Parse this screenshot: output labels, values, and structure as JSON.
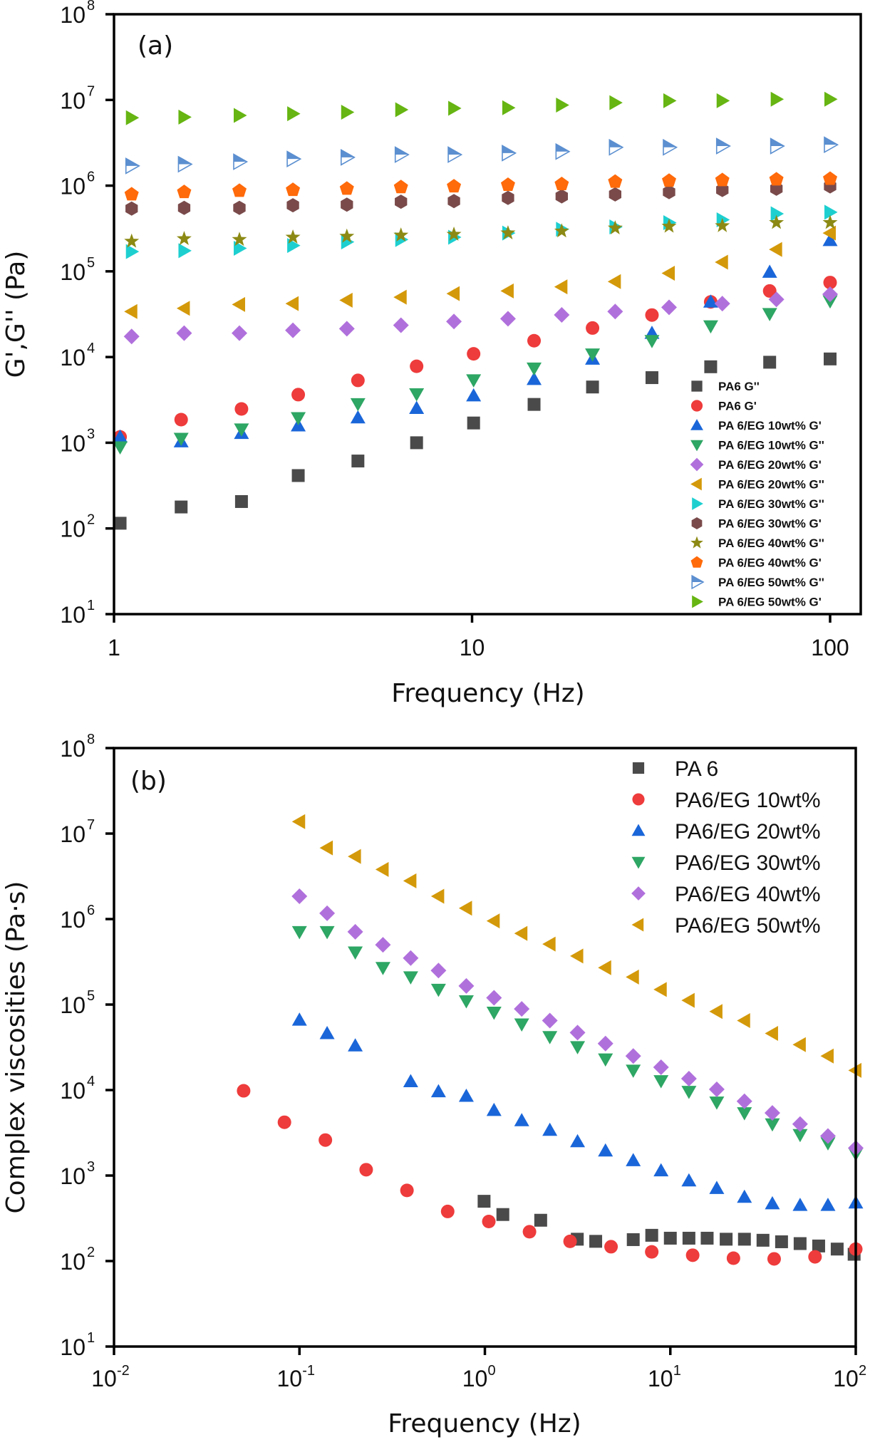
{
  "chart_data": [
    {
      "type": "scatter",
      "panel_label": "(a)",
      "title": "",
      "xlabel": "Frequency (Hz)",
      "ylabel": "G',G'' (Pa)",
      "xscale": "log",
      "yscale": "log",
      "xlim": [
        1,
        100
      ],
      "ylim": [
        10,
        100000000
      ],
      "xticks": [
        {
          "value": 1,
          "label": "1"
        },
        {
          "value": 10,
          "label": "10"
        },
        {
          "value": 100,
          "label": "100"
        }
      ],
      "yticks": [
        {
          "value": 10,
          "base": "10",
          "exp": "1"
        },
        {
          "value": 100,
          "base": "10",
          "exp": "2"
        },
        {
          "value": 1000,
          "base": "10",
          "exp": "3"
        },
        {
          "value": 10000,
          "base": "10",
          "exp": "4"
        },
        {
          "value": 100000,
          "base": "10",
          "exp": "5"
        },
        {
          "value": 1000000,
          "base": "10",
          "exp": "6"
        },
        {
          "value": 10000000,
          "base": "10",
          "exp": "7"
        },
        {
          "value": 100000000,
          "base": "10",
          "exp": "8"
        }
      ],
      "grid": false,
      "legend_position": "bottom-right",
      "series": [
        {
          "name": "PA6 G''",
          "marker": "square",
          "color": "#4a4a4a",
          "x": [
            1.04,
            1.54,
            2.27,
            3.27,
            4.8,
            7.0,
            10.1,
            14.9,
            21.7,
            31.8,
            46.4,
            67.8,
            100
          ],
          "y": [
            115,
            178,
            206,
            414,
            612,
            1000,
            1700,
            2800,
            4470,
            5750,
            7700,
            8700,
            9500
          ]
        },
        {
          "name": "PA6 G'",
          "marker": "circle",
          "color": "#ee3b3b",
          "x": [
            1.04,
            1.54,
            2.27,
            3.27,
            4.8,
            7.0,
            10.1,
            14.9,
            21.7,
            31.8,
            46.4,
            67.8,
            100
          ],
          "y": [
            1170,
            1860,
            2480,
            3640,
            5340,
            7800,
            10900,
            15500,
            21800,
            30900,
            44000,
            59000,
            74000
          ]
        },
        {
          "name": "PA 6/EG 10wt% G'",
          "marker": "triangle-up",
          "color": "#1a66d9",
          "x": [
            1.04,
            1.54,
            2.27,
            3.27,
            4.8,
            7.0,
            10.1,
            14.9,
            21.7,
            31.8,
            46.4,
            67.8,
            100
          ],
          "y": [
            1170,
            1030,
            1290,
            1580,
            1960,
            2530,
            3540,
            5500,
            9500,
            19000,
            44000,
            98000,
            230000
          ]
        },
        {
          "name": "PA 6/EG 10wt% G''",
          "marker": "triangle-down",
          "color": "#2ea664",
          "x": [
            1.04,
            1.54,
            2.27,
            3.27,
            4.8,
            7.0,
            10.1,
            14.9,
            21.7,
            31.8,
            46.4,
            67.8,
            100
          ],
          "y": [
            890,
            1120,
            1440,
            1950,
            2840,
            3710,
            5400,
            7400,
            10800,
            15500,
            23000,
            32000,
            45000
          ]
        },
        {
          "name": "PA 6/EG 20wt% G'",
          "marker": "diamond",
          "color": "#b070dc",
          "x": [
            1.12,
            1.57,
            2.24,
            3.16,
            4.47,
            6.33,
            8.9,
            12.6,
            17.8,
            25.1,
            35.5,
            50,
            70.8,
            100
          ],
          "y": [
            17400,
            19000,
            19000,
            20500,
            21400,
            23500,
            26000,
            28000,
            31000,
            34000,
            38000,
            42000,
            47000,
            54000
          ]
        },
        {
          "name": "PA 6/EG 20wt% G''",
          "marker": "triangle-left",
          "color": "#d4990a",
          "x": [
            1.12,
            1.57,
            2.24,
            3.16,
            4.47,
            6.33,
            8.9,
            12.6,
            17.8,
            25.1,
            35.5,
            50,
            70.8,
            100
          ],
          "y": [
            34000,
            37000,
            41000,
            42000,
            46000,
            50000,
            55000,
            59000,
            66000,
            76000,
            95000,
            128000,
            180000,
            280000
          ]
        },
        {
          "name": "PA 6/EG 30wt% G''",
          "marker": "triangle-right",
          "color": "#1ecfd0",
          "x": [
            1.12,
            1.57,
            2.24,
            3.16,
            4.47,
            6.33,
            8.9,
            12.6,
            17.8,
            25.1,
            35.5,
            50,
            70.8,
            100
          ],
          "y": [
            170000,
            174000,
            186000,
            200000,
            220000,
            235000,
            250000,
            280000,
            310000,
            330000,
            370000,
            400000,
            470000,
            490000
          ]
        },
        {
          "name": "PA 6/EG 30wt% G'",
          "marker": "hexagon",
          "color": "#7a4a4a",
          "x": [
            1.12,
            1.57,
            2.24,
            3.16,
            4.47,
            6.33,
            8.9,
            12.6,
            17.8,
            25.1,
            35.5,
            50,
            70.8,
            100
          ],
          "y": [
            540000,
            550000,
            550000,
            590000,
            600000,
            650000,
            660000,
            720000,
            750000,
            790000,
            840000,
            890000,
            920000,
            980000
          ]
        },
        {
          "name": "PA 6/EG 40wt% G''",
          "marker": "star",
          "color": "#8c8a14",
          "x": [
            1.12,
            1.57,
            2.24,
            3.16,
            4.47,
            6.33,
            8.9,
            12.6,
            17.8,
            25.1,
            35.5,
            50,
            70.8,
            100
          ],
          "y": [
            224000,
            240000,
            235000,
            250000,
            256000,
            264000,
            270000,
            280000,
            295000,
            320000,
            335000,
            340000,
            370000,
            370000
          ]
        },
        {
          "name": "PA 6/EG 40wt% G'",
          "marker": "pentagon",
          "color": "#ff6a0a",
          "x": [
            1.12,
            1.57,
            2.24,
            3.16,
            4.47,
            6.33,
            8.9,
            12.6,
            17.8,
            25.1,
            35.5,
            50,
            70.8,
            100
          ],
          "y": [
            790000,
            840000,
            870000,
            890000,
            920000,
            960000,
            980000,
            1020000,
            1040000,
            1110000,
            1140000,
            1160000,
            1180000,
            1200000
          ]
        },
        {
          "name": "PA 6/EG 50wt% G''",
          "marker": "half-triangle-right",
          "color": "#5b8fd0",
          "x": [
            1.12,
            1.57,
            2.24,
            3.16,
            4.47,
            6.33,
            8.9,
            12.6,
            17.8,
            25.1,
            35.5,
            50,
            70.8,
            100
          ],
          "y": [
            1700000,
            1780000,
            1900000,
            2050000,
            2140000,
            2300000,
            2300000,
            2400000,
            2500000,
            2800000,
            2800000,
            2900000,
            2900000,
            3000000
          ]
        },
        {
          "name": "PA 6/EG 50wt% G'",
          "marker": "triangle-right",
          "color": "#66b512",
          "x": [
            1.12,
            1.57,
            2.24,
            3.16,
            4.47,
            6.33,
            8.9,
            12.6,
            17.8,
            25.1,
            35.5,
            50,
            70.8,
            100
          ],
          "y": [
            6200000,
            6300000,
            6600000,
            6900000,
            7200000,
            7700000,
            8000000,
            8100000,
            8700000,
            9300000,
            9800000,
            9800000,
            10200000,
            10200000
          ]
        }
      ]
    },
    {
      "type": "scatter",
      "panel_label": "(b)",
      "title": "",
      "xlabel": "Frequency (Hz)",
      "ylabel": "Complex viscosities  (Pa·s)",
      "xscale": "log",
      "yscale": "log",
      "xlim": [
        0.01,
        100
      ],
      "ylim": [
        10,
        100000000
      ],
      "xticks": [
        {
          "value": 0.01,
          "base": "10",
          "exp": "-2"
        },
        {
          "value": 0.1,
          "base": "10",
          "exp": "-1"
        },
        {
          "value": 1,
          "base": "10",
          "exp": "0"
        },
        {
          "value": 10,
          "base": "10",
          "exp": "1"
        },
        {
          "value": 100,
          "base": "10",
          "exp": "2"
        }
      ],
      "yticks": [
        {
          "value": 10,
          "base": "10",
          "exp": "1"
        },
        {
          "value": 100,
          "base": "10",
          "exp": "2"
        },
        {
          "value": 1000,
          "base": "10",
          "exp": "3"
        },
        {
          "value": 10000,
          "base": "10",
          "exp": "4"
        },
        {
          "value": 100000,
          "base": "10",
          "exp": "5"
        },
        {
          "value": 1000000,
          "base": "10",
          "exp": "6"
        },
        {
          "value": 10000000,
          "base": "10",
          "exp": "7"
        },
        {
          "value": 100000000,
          "base": "10",
          "exp": "8"
        }
      ],
      "grid": false,
      "legend_position": "top-right",
      "series": [
        {
          "name": "PA 6",
          "marker": "square",
          "color": "#4a4a4a",
          "x": [
            0.99,
            1.25,
            2.0,
            3.15,
            3.96,
            6.31,
            7.94,
            10,
            12.6,
            15.8,
            20,
            25.1,
            31.6,
            39.8,
            50.1,
            63.1,
            79.4,
            98
          ],
          "y": [
            500,
            350,
            300,
            180,
            170,
            178,
            200,
            185,
            185,
            185,
            180,
            180,
            175,
            168,
            160,
            150,
            138,
            120
          ]
        },
        {
          "name": "PA6/EG 10wt%",
          "marker": "circle",
          "color": "#ee3b3b",
          "x": [
            0.05,
            0.083,
            0.138,
            0.229,
            0.38,
            0.63,
            1.05,
            1.74,
            2.88,
            4.79,
            7.94,
            13.2,
            21.9,
            36.3,
            60.3,
            100
          ],
          "y": [
            9800,
            4200,
            2600,
            1170,
            670,
            380,
            290,
            220,
            170,
            147,
            128,
            117,
            108,
            106,
            112,
            138
          ]
        },
        {
          "name": "PA6/EG 20wt%",
          "marker": "triangle-up",
          "color": "#1a66d9",
          "x": [
            0.1,
            0.141,
            0.2,
            0.398,
            0.562,
            0.794,
            1.12,
            1.58,
            2.24,
            3.16,
            4.47,
            6.31,
            8.91,
            12.6,
            17.8,
            25.1,
            35.5,
            50.1,
            70.8,
            100
          ],
          "y": [
            66000,
            46000,
            33000,
            12600,
            9600,
            8500,
            5800,
            4400,
            3400,
            2500,
            1950,
            1500,
            1140,
            870,
            710,
            560,
            470,
            450,
            450,
            480
          ]
        },
        {
          "name": "PA6/EG 30wt%",
          "marker": "triangle-down",
          "color": "#2ea664",
          "x": [
            0.1,
            0.141,
            0.2,
            0.282,
            0.398,
            0.562,
            0.794,
            1.12,
            1.58,
            2.24,
            3.16,
            4.47,
            6.31,
            8.91,
            12.6,
            17.8,
            25.1,
            35.5,
            50.1,
            70.8,
            100
          ],
          "y": [
            710000,
            710000,
            410000,
            270000,
            210000,
            150000,
            110000,
            81000,
            59000,
            42000,
            32000,
            23000,
            17000,
            12800,
            9600,
            7200,
            5400,
            4000,
            3000,
            2400,
            1800
          ]
        },
        {
          "name": "PA6/EG 40wt%",
          "marker": "diamond",
          "color": "#b070dc",
          "x": [
            0.1,
            0.141,
            0.2,
            0.282,
            0.398,
            0.562,
            0.794,
            1.12,
            1.58,
            2.24,
            3.16,
            4.47,
            6.31,
            8.91,
            12.6,
            17.8,
            25.1,
            35.5,
            50.1,
            70.8,
            100
          ],
          "y": [
            1850000,
            1170000,
            710000,
            500000,
            350000,
            250000,
            165000,
            120000,
            89000,
            65000,
            47000,
            35000,
            25000,
            18500,
            13600,
            10200,
            7400,
            5400,
            4000,
            2900,
            2100
          ]
        },
        {
          "name": "PA6/EG 50wt%",
          "marker": "triangle-left",
          "color": "#d4990a",
          "x": [
            0.1,
            0.141,
            0.2,
            0.282,
            0.398,
            0.562,
            0.794,
            1.12,
            1.58,
            2.24,
            3.16,
            4.47,
            6.31,
            8.91,
            12.6,
            17.8,
            25.1,
            35.5,
            50.1,
            70.8,
            100
          ],
          "y": [
            13800000,
            6800000,
            5400000,
            3800000,
            2800000,
            1850000,
            1340000,
            950000,
            680000,
            510000,
            370000,
            270000,
            210000,
            150000,
            112000,
            83000,
            65000,
            46000,
            34000,
            25000,
            17000
          ]
        }
      ]
    }
  ]
}
